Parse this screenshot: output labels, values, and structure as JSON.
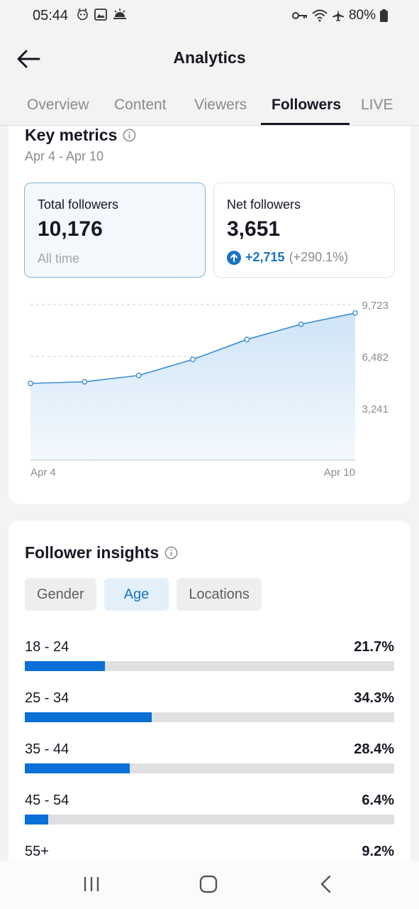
{
  "status_bar": {
    "time": "05:44",
    "battery": "80%",
    "icons": [
      "face-icon",
      "gallery-icon",
      "weather-icon",
      "key-icon",
      "wifi-icon",
      "airplane-icon",
      "battery-icon"
    ]
  },
  "header": {
    "title": "Analytics",
    "back_icon": "arrow-left-icon"
  },
  "tabs": [
    {
      "label": "Overview",
      "active": false
    },
    {
      "label": "Content",
      "active": false
    },
    {
      "label": "Viewers",
      "active": false
    },
    {
      "label": "Followers",
      "active": true
    },
    {
      "label": "LIVE",
      "active": false
    }
  ],
  "key_metrics": {
    "title": "Key metrics",
    "date_range": "Apr 4 - Apr 10",
    "total": {
      "label": "Total followers",
      "value": "10,176",
      "sub": "All time"
    },
    "net": {
      "label": "Net followers",
      "value": "3,651",
      "change": "+2,715",
      "change_pct": "(+290.1%)"
    }
  },
  "chart_data": {
    "type": "area",
    "x_labels": [
      "Apr 4",
      "Apr 10"
    ],
    "x": [
      "Apr 4",
      "Apr 5",
      "Apr 6",
      "Apr 7",
      "Apr 8",
      "Apr 9",
      "Apr 10"
    ],
    "values": [
      4800,
      4900,
      5300,
      6300,
      7550,
      8500,
      9200
    ],
    "y_ticks": [
      "9,723",
      "6,482",
      "3,241"
    ],
    "y_tick_values": [
      9723,
      6482,
      3241
    ],
    "ylim": [
      0,
      9723
    ],
    "grid": true,
    "colors": {
      "line": "#3b8fd4",
      "fill_top": "#cfe4f7",
      "fill_bottom": "#f1f7fc"
    }
  },
  "insights": {
    "title": "Follower insights",
    "chips": [
      {
        "label": "Gender",
        "active": false
      },
      {
        "label": "Age",
        "active": true
      },
      {
        "label": "Locations",
        "active": false
      }
    ],
    "age_rows": [
      {
        "label": "18 - 24",
        "value": "21.7%",
        "fraction": 0.217
      },
      {
        "label": "25 - 34",
        "value": "34.3%",
        "fraction": 0.343
      },
      {
        "label": "35 - 44",
        "value": "28.4%",
        "fraction": 0.284
      },
      {
        "label": "45 - 54",
        "value": "6.4%",
        "fraction": 0.064
      },
      {
        "label": "55+",
        "value": "9.2%",
        "fraction": 0.092
      }
    ]
  },
  "nav_bar": {
    "icons": [
      "recent-apps-icon",
      "home-icon",
      "back-icon"
    ]
  },
  "colors": {
    "accent": "#0a6fd6",
    "text": "#161823",
    "muted": "#8a8b91"
  }
}
